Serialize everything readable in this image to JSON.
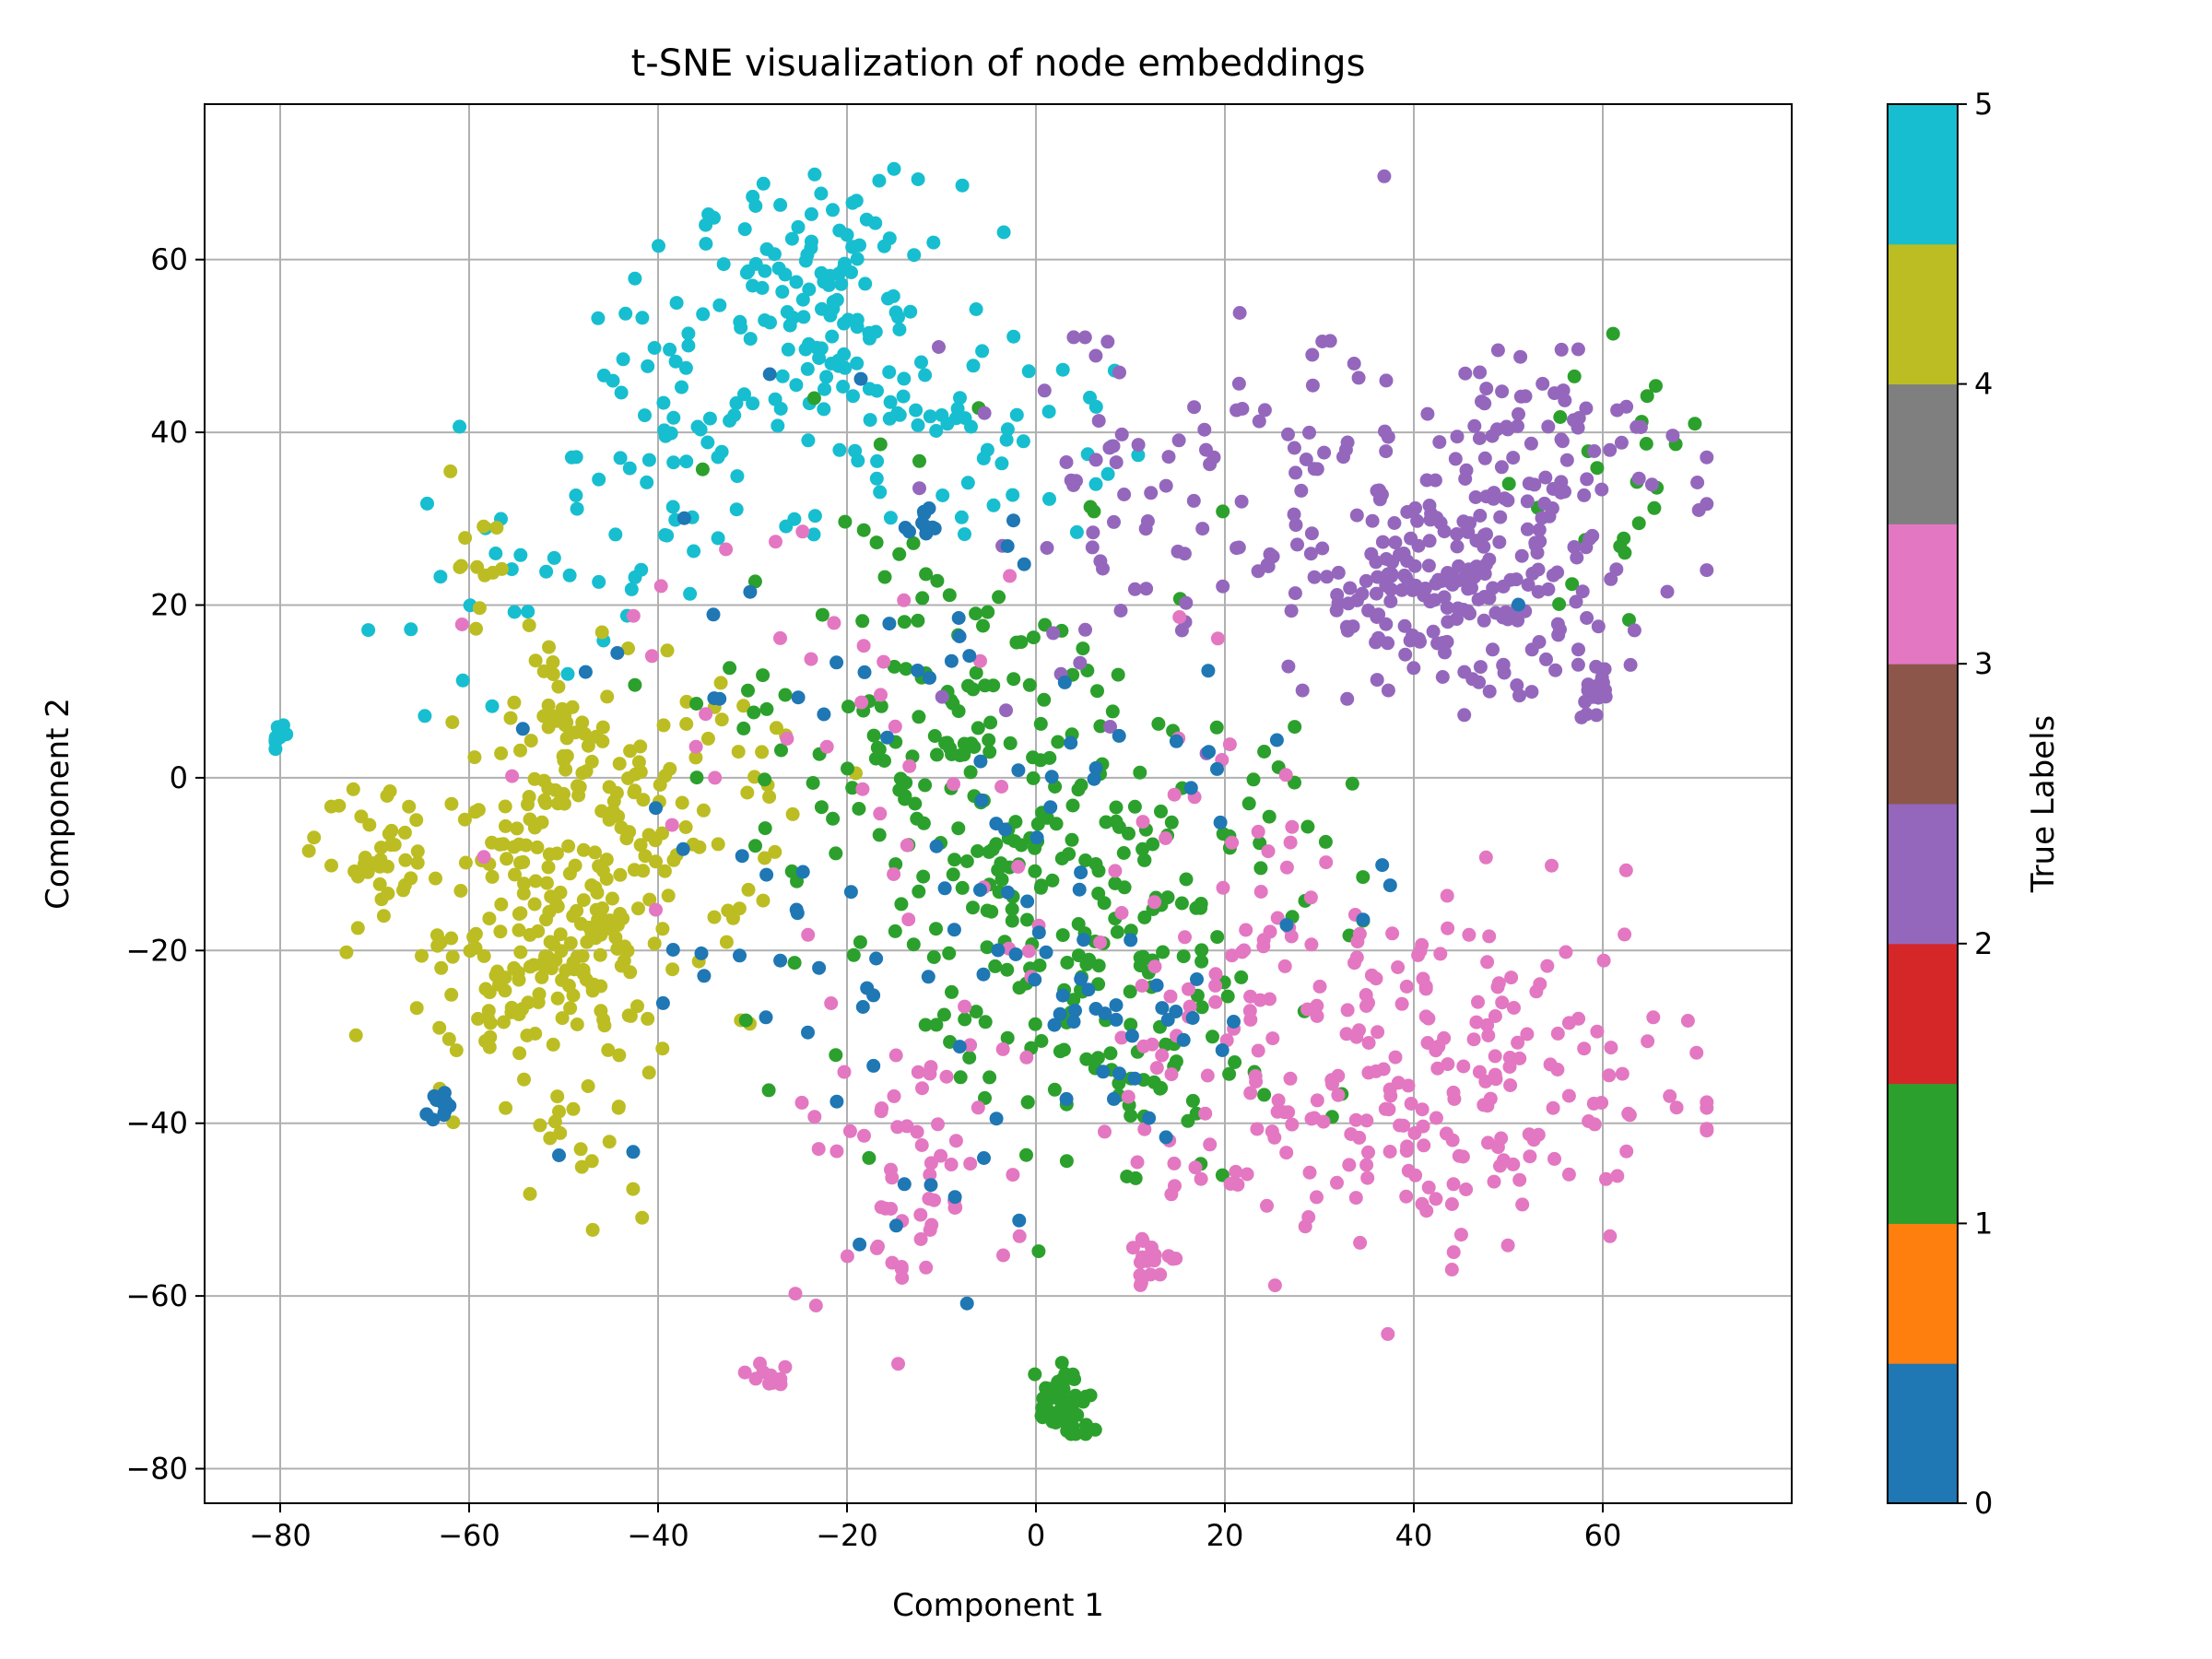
{
  "chart_data": {
    "type": "scatter",
    "title": "t-SNE visualization of node embeddings",
    "xlabel": "Component 1",
    "ylabel": "Component 2",
    "xlim": [
      -88,
      80
    ],
    "ylim": [
      -84,
      78
    ],
    "xticks": [
      -80,
      -60,
      -40,
      -20,
      0,
      20,
      40,
      60
    ],
    "yticks": [
      -80,
      -60,
      -40,
      -20,
      0,
      20,
      40,
      60
    ],
    "grid": true,
    "colorbar": {
      "label": "True Labels",
      "min": 0,
      "max": 5,
      "ticks": [
        0,
        1,
        2,
        3,
        4,
        5
      ],
      "colormap": "tab10 (first 10 colors spread over 0–5)",
      "colors": [
        "#1f77b4",
        "#ff7f0e",
        "#2ca02c",
        "#d62728",
        "#9467bd",
        "#8c564b",
        "#e377c2",
        "#7f7f7f",
        "#bcbd22",
        "#17becf"
      ]
    },
    "label_colors": {
      "0": "#1f77b4",
      "1": "#2ca02c",
      "2": "#9467bd",
      "3": "#e377c2",
      "4": "#bcbd22",
      "5": "#17becf"
    },
    "clusters": [
      {
        "label": 5,
        "cx": -22,
        "cy": 55,
        "sx": 7,
        "sy": 7,
        "n": 120
      },
      {
        "label": 5,
        "cx": -35,
        "cy": 42,
        "sx": 8,
        "sy": 10,
        "n": 70
      },
      {
        "label": 5,
        "cx": -8,
        "cy": 40,
        "sx": 8,
        "sy": 6,
        "n": 50
      },
      {
        "label": 5,
        "cx": -55,
        "cy": 20,
        "sx": 8,
        "sy": 8,
        "n": 25
      },
      {
        "label": 5,
        "cx": -80,
        "cy": 5,
        "sx": 0.7,
        "sy": 0.7,
        "n": 8
      },
      {
        "label": 4,
        "cx": -52,
        "cy": -18,
        "sx": 8,
        "sy": 9,
        "n": 230
      },
      {
        "label": 4,
        "cx": -40,
        "cy": 0,
        "sx": 8,
        "sy": 8,
        "n": 80
      },
      {
        "label": 4,
        "cx": -70,
        "cy": -10,
        "sx": 3,
        "sy": 4,
        "n": 35
      },
      {
        "label": 4,
        "cx": -50,
        "cy": 5,
        "sx": 2,
        "sy": 3,
        "n": 25
      },
      {
        "label": 4,
        "cx": -48,
        "cy": -45,
        "sx": 3,
        "sy": 5,
        "n": 15
      },
      {
        "label": 4,
        "cx": -60,
        "cy": 25,
        "sx": 2,
        "sy": 4,
        "n": 12
      },
      {
        "label": 1,
        "cx": 5,
        "cy": -15,
        "sx": 14,
        "sy": 12,
        "n": 220
      },
      {
        "label": 1,
        "cx": -10,
        "cy": 10,
        "sx": 12,
        "sy": 12,
        "n": 120
      },
      {
        "label": 1,
        "cx": 3,
        "cy": -73,
        "sx": 1.5,
        "sy": 2.5,
        "n": 55
      },
      {
        "label": 1,
        "cx": 62,
        "cy": 33,
        "sx": 5,
        "sy": 7,
        "n": 25
      },
      {
        "label": 1,
        "cx": 12,
        "cy": -35,
        "sx": 3,
        "sy": 4,
        "n": 25
      },
      {
        "label": 2,
        "cx": 45,
        "cy": 22,
        "sx": 8,
        "sy": 6,
        "n": 200
      },
      {
        "label": 2,
        "cx": 20,
        "cy": 30,
        "sx": 14,
        "sy": 12,
        "n": 120
      },
      {
        "label": 2,
        "cx": 55,
        "cy": 40,
        "sx": 8,
        "sy": 4,
        "n": 60
      },
      {
        "label": 2,
        "cx": 60,
        "cy": 10,
        "sx": 2,
        "sy": 2,
        "n": 20
      },
      {
        "label": 3,
        "cx": 42,
        "cy": -35,
        "sx": 14,
        "sy": 10,
        "n": 230
      },
      {
        "label": 3,
        "cx": 20,
        "cy": -20,
        "sx": 10,
        "sy": 15,
        "n": 60
      },
      {
        "label": 3,
        "cx": -15,
        "cy": -45,
        "sx": 6,
        "sy": 8,
        "n": 60
      },
      {
        "label": 3,
        "cx": 12,
        "cy": -56,
        "sx": 1.5,
        "sy": 1.5,
        "n": 20
      },
      {
        "label": 3,
        "cx": -28,
        "cy": -69,
        "sx": 1.2,
        "sy": 0.8,
        "n": 10
      },
      {
        "label": 3,
        "cx": -20,
        "cy": 10,
        "sx": 15,
        "sy": 15,
        "n": 40
      },
      {
        "label": 0,
        "cx": -15,
        "cy": -10,
        "sx": 20,
        "sy": 25,
        "n": 110
      },
      {
        "label": 0,
        "cx": -63,
        "cy": -38,
        "sx": 1,
        "sy": 1,
        "n": 12
      },
      {
        "label": 0,
        "cx": -12,
        "cy": 30,
        "sx": 1,
        "sy": 1,
        "n": 10
      },
      {
        "label": 0,
        "cx": 10,
        "cy": -30,
        "sx": 5,
        "sy": 5,
        "n": 20
      }
    ]
  }
}
